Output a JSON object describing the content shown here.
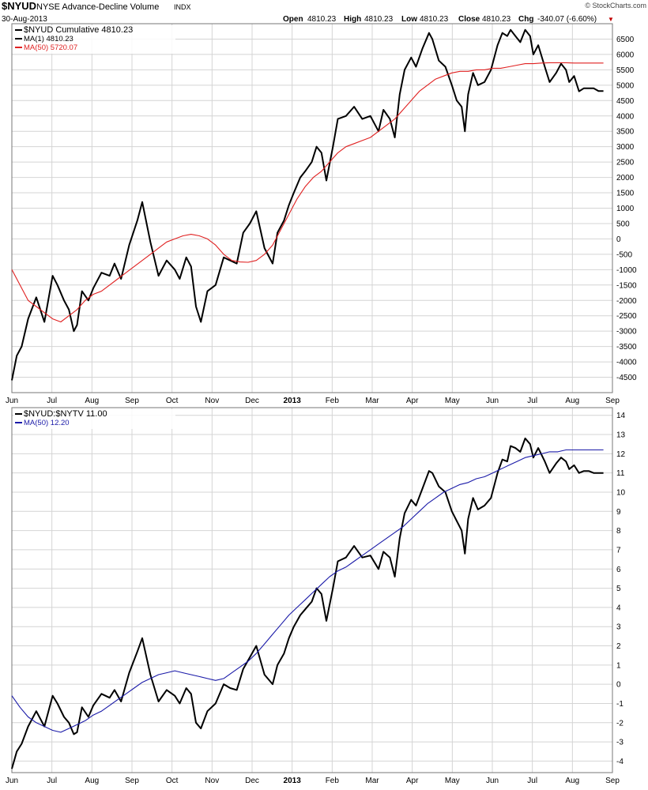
{
  "header": {
    "symbol": "$NYUD",
    "name": "NYSE Advance-Decline Volume",
    "exchange": "INDX",
    "date": "30-Aug-2013",
    "watermark": "© StockCharts.com",
    "open_label": "Open",
    "open": "4810.23",
    "high_label": "High",
    "high": "4810.23",
    "low_label": "Low",
    "low": "4810.23",
    "close_label": "Close",
    "close": "4810.23",
    "chg_label": "Chg",
    "chg": "-340.07 (-6.60%)",
    "chg_arrow": "▼"
  },
  "colors": {
    "price": "#000000",
    "ma_top": "#e02020",
    "ma_bottom": "#1a1aa8",
    "grid": "#d4d4d4",
    "down_arrow": "#c00000"
  },
  "x_axis_labels": [
    "Jun",
    "Jul",
    "Aug",
    "Sep",
    "Oct",
    "Nov",
    "Dec",
    "2013",
    "Feb",
    "Mar",
    "Apr",
    "May",
    "Jun",
    "Jul",
    "Aug",
    "Sep"
  ],
  "chart_data": [
    {
      "type": "line",
      "legend": [
        {
          "text": "$NYUD  Cumulative 4810.23",
          "color": "#000000"
        },
        {
          "text": "MA(1) 4810.23",
          "color": "#000000"
        },
        {
          "text": "MA(50) 5720.07",
          "color": "#e02020"
        }
      ],
      "ylim": [
        -5000,
        7000
      ],
      "yticks": [
        "6500",
        "6000",
        "5500",
        "5000",
        "4500",
        "4000",
        "3500",
        "3000",
        "2500",
        "2000",
        "1500",
        "1000",
        "500",
        "0",
        "-500",
        "-1000",
        "-1500",
        "-2000",
        "-2500",
        "-3000",
        "-3500",
        "-4000",
        "-4500"
      ],
      "ytick_values": [
        6500,
        6000,
        5500,
        5000,
        4500,
        4000,
        3500,
        3000,
        2500,
        2000,
        1500,
        1000,
        500,
        0,
        -500,
        -1000,
        -1500,
        -2000,
        -2500,
        -3000,
        -3500,
        -4000,
        -4500
      ],
      "series": [
        {
          "name": "$NYUD",
          "style": "thick",
          "x": [
            0,
            3,
            6,
            10,
            15,
            20,
            25,
            28,
            32,
            35,
            38,
            40,
            43,
            47,
            50,
            55,
            60,
            63,
            67,
            72,
            77,
            80,
            85,
            90,
            95,
            100,
            103,
            107,
            110,
            113,
            116,
            120,
            125,
            130,
            134,
            138,
            142,
            146,
            150,
            155,
            160,
            163,
            167,
            170,
            173,
            177,
            180,
            184,
            187,
            190,
            193,
            197,
            200,
            205,
            210,
            215,
            220,
            225,
            228,
            232,
            235,
            238,
            241,
            245,
            248,
            252,
            256,
            258,
            262,
            266,
            270,
            273,
            276,
            278,
            280,
            283,
            286,
            290,
            294,
            298,
            301,
            304,
            306,
            309,
            312,
            315,
            318,
            320,
            323,
            327,
            330,
            334,
            337,
            340,
            342,
            345,
            348,
            351,
            354,
            357,
            360,
            363
          ],
          "y": [
            -4600,
            -3800,
            -3500,
            -2600,
            -1900,
            -2700,
            -1200,
            -1500,
            -2000,
            -2300,
            -3000,
            -2800,
            -1700,
            -2000,
            -1600,
            -1100,
            -1200,
            -800,
            -1300,
            -200,
            600,
            1200,
            -100,
            -1200,
            -700,
            -1000,
            -1300,
            -600,
            -900,
            -2200,
            -2700,
            -1700,
            -1500,
            -600,
            -700,
            -800,
            200,
            500,
            900,
            -300,
            -800,
            200,
            600,
            1100,
            1500,
            2000,
            2200,
            2500,
            3000,
            2800,
            1900,
            3000,
            3900,
            4000,
            4300,
            3900,
            4000,
            3500,
            4200,
            3900,
            3300,
            4700,
            5500,
            5900,
            5600,
            6200,
            6700,
            6500,
            5800,
            5600,
            5000,
            4500,
            4300,
            3500,
            4700,
            5400,
            5000,
            5100,
            5500,
            6300,
            6700,
            6600,
            6800,
            6600,
            6400,
            6800,
            6600,
            6000,
            6300,
            5600,
            5100,
            5400,
            5700,
            5500,
            5100,
            5300,
            4800,
            4900,
            4900,
            4900,
            4810,
            4810
          ]
        },
        {
          "name": "MA(50)",
          "style": "thin",
          "x": [
            0,
            5,
            10,
            15,
            20,
            25,
            30,
            35,
            40,
            45,
            50,
            55,
            60,
            65,
            70,
            75,
            80,
            85,
            90,
            95,
            100,
            105,
            110,
            115,
            120,
            125,
            130,
            135,
            140,
            145,
            150,
            155,
            160,
            165,
            170,
            175,
            180,
            185,
            190,
            195,
            200,
            205,
            210,
            215,
            220,
            225,
            230,
            235,
            240,
            245,
            250,
            255,
            260,
            265,
            270,
            275,
            280,
            285,
            290,
            295,
            300,
            305,
            310,
            315,
            320,
            325,
            330,
            335,
            340,
            345,
            350,
            355,
            360,
            363
          ],
          "y": [
            -1000,
            -1500,
            -2000,
            -2200,
            -2400,
            -2600,
            -2700,
            -2500,
            -2300,
            -2000,
            -1800,
            -1700,
            -1500,
            -1300,
            -1100,
            -900,
            -700,
            -500,
            -300,
            -100,
            0,
            100,
            150,
            100,
            0,
            -200,
            -500,
            -700,
            -750,
            -760,
            -700,
            -500,
            -200,
            300,
            800,
            1300,
            1700,
            2000,
            2200,
            2500,
            2800,
            3000,
            3100,
            3200,
            3300,
            3500,
            3700,
            3900,
            4200,
            4500,
            4800,
            5000,
            5200,
            5300,
            5400,
            5450,
            5450,
            5500,
            5500,
            5550,
            5550,
            5600,
            5650,
            5700,
            5700,
            5720,
            5730,
            5730,
            5730,
            5720,
            5720,
            5720,
            5720,
            5720
          ]
        }
      ]
    },
    {
      "type": "line",
      "legend": [
        {
          "text": "$NYUD:$NYTV  11.00",
          "color": "#000000"
        },
        {
          "text": "MA(50) 12.20",
          "color": "#1a1aa8"
        }
      ],
      "ylim": [
        -4.6,
        14.4
      ],
      "yticks": [
        "14",
        "13",
        "12",
        "11",
        "10",
        "9",
        "8",
        "7",
        "6",
        "5",
        "4",
        "3",
        "2",
        "1",
        "0",
        "-1",
        "-2",
        "-3",
        "-4"
      ],
      "ytick_values": [
        14,
        13,
        12,
        11,
        10,
        9,
        8,
        7,
        6,
        5,
        4,
        3,
        2,
        1,
        0,
        -1,
        -2,
        -3,
        -4
      ],
      "series": [
        {
          "name": "$NYUD:$NYTV",
          "style": "thick",
          "x": [
            0,
            3,
            6,
            10,
            15,
            20,
            25,
            28,
            32,
            35,
            38,
            40,
            43,
            47,
            50,
            55,
            60,
            63,
            67,
            72,
            77,
            80,
            85,
            90,
            95,
            100,
            103,
            107,
            110,
            113,
            116,
            120,
            125,
            130,
            134,
            138,
            142,
            146,
            150,
            155,
            160,
            163,
            167,
            170,
            173,
            177,
            180,
            184,
            187,
            190,
            193,
            197,
            200,
            205,
            210,
            215,
            220,
            225,
            228,
            232,
            235,
            238,
            241,
            245,
            248,
            252,
            256,
            258,
            262,
            266,
            270,
            273,
            276,
            278,
            280,
            283,
            286,
            290,
            294,
            298,
            301,
            304,
            306,
            309,
            312,
            315,
            318,
            320,
            323,
            327,
            330,
            334,
            337,
            340,
            342,
            345,
            348,
            351,
            354,
            357,
            360,
            363
          ],
          "y": [
            -4.4,
            -3.5,
            -3.1,
            -2.2,
            -1.4,
            -2.2,
            -0.6,
            -1.0,
            -1.7,
            -2.0,
            -2.6,
            -2.5,
            -1.2,
            -1.7,
            -1.1,
            -0.5,
            -0.7,
            -0.3,
            -0.9,
            0.6,
            1.7,
            2.4,
            0.5,
            -0.9,
            -0.3,
            -0.6,
            -1.0,
            -0.2,
            -0.5,
            -2.0,
            -2.3,
            -1.4,
            -1.0,
            0.0,
            -0.2,
            -0.3,
            0.8,
            1.4,
            2.0,
            0.5,
            0.0,
            1.0,
            1.6,
            2.4,
            3.0,
            3.6,
            3.9,
            4.3,
            5.0,
            4.7,
            3.3,
            5.0,
            6.4,
            6.6,
            7.2,
            6.6,
            6.7,
            6.0,
            6.9,
            6.6,
            5.6,
            7.6,
            8.9,
            9.6,
            9.3,
            10.2,
            11.1,
            11.0,
            10.3,
            10.0,
            9.0,
            8.5,
            8.0,
            6.8,
            8.6,
            9.7,
            9.1,
            9.3,
            9.7,
            11.0,
            11.7,
            11.6,
            12.4,
            12.3,
            12.1,
            12.8,
            12.5,
            11.8,
            12.3,
            11.6,
            11.0,
            11.5,
            11.8,
            11.6,
            11.2,
            11.4,
            11.0,
            11.1,
            11.1,
            11.0,
            11.0,
            11.0
          ]
        },
        {
          "name": "MA(50)",
          "style": "thin",
          "x": [
            0,
            5,
            10,
            15,
            20,
            25,
            30,
            35,
            40,
            45,
            50,
            55,
            60,
            65,
            70,
            75,
            80,
            85,
            90,
            95,
            100,
            105,
            110,
            115,
            120,
            125,
            130,
            135,
            140,
            145,
            150,
            155,
            160,
            165,
            170,
            175,
            180,
            185,
            190,
            195,
            200,
            205,
            210,
            215,
            220,
            225,
            230,
            235,
            240,
            245,
            250,
            255,
            260,
            265,
            270,
            275,
            280,
            285,
            290,
            295,
            300,
            305,
            310,
            315,
            320,
            325,
            330,
            335,
            340,
            345,
            350,
            355,
            360,
            363
          ],
          "y": [
            -0.6,
            -1.2,
            -1.7,
            -2.0,
            -2.2,
            -2.4,
            -2.5,
            -2.3,
            -2.1,
            -1.9,
            -1.6,
            -1.4,
            -1.1,
            -0.8,
            -0.5,
            -0.2,
            0.1,
            0.3,
            0.5,
            0.6,
            0.7,
            0.6,
            0.5,
            0.4,
            0.3,
            0.2,
            0.3,
            0.6,
            0.9,
            1.2,
            1.6,
            2.1,
            2.6,
            3.1,
            3.6,
            4.0,
            4.4,
            4.8,
            5.2,
            5.6,
            5.9,
            6.1,
            6.4,
            6.7,
            7.0,
            7.3,
            7.6,
            7.9,
            8.2,
            8.6,
            9.0,
            9.4,
            9.7,
            10.0,
            10.2,
            10.4,
            10.5,
            10.7,
            10.8,
            11.0,
            11.2,
            11.4,
            11.6,
            11.8,
            11.9,
            12.0,
            12.1,
            12.1,
            12.2,
            12.2,
            12.2,
            12.2,
            12.2,
            12.2
          ]
        }
      ]
    }
  ]
}
